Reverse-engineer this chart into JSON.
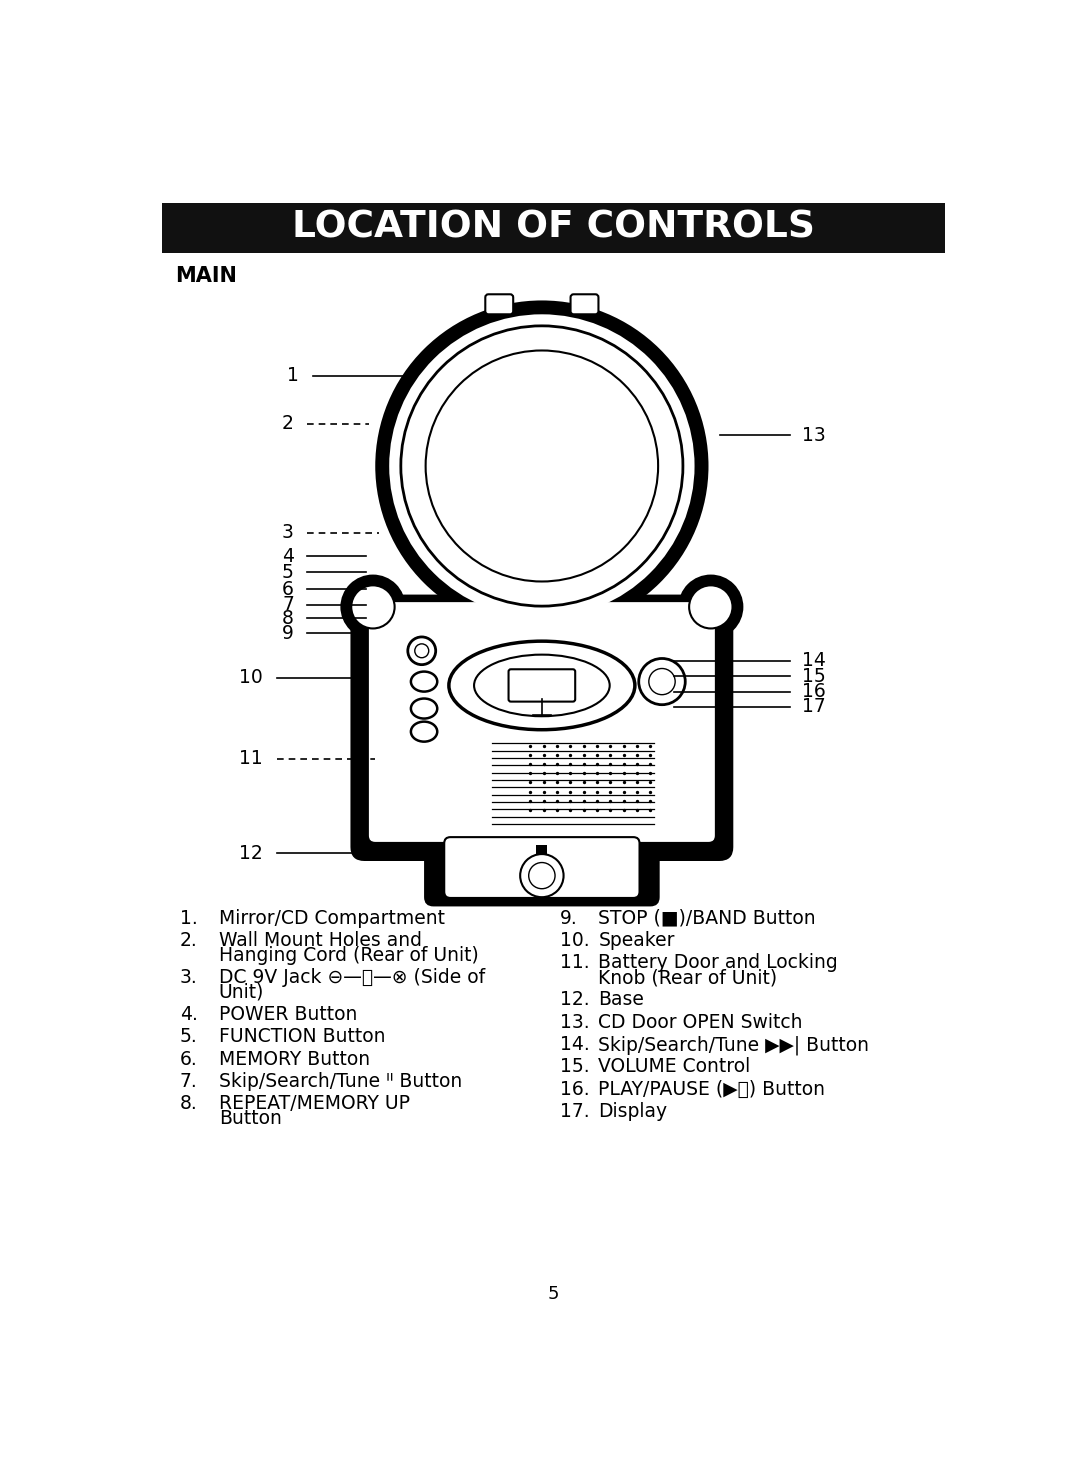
{
  "title": "LOCATION OF CONTROLS",
  "subtitle": "MAIN",
  "page_number": "5",
  "background_color": "#ffffff",
  "title_bg_color": "#111111",
  "title_text_color": "#ffffff",
  "items_left": [
    {
      "num": "1.",
      "text": "Mirror/CD Compartment"
    },
    {
      "num": "2.",
      "text": "Wall Mount Holes and\nHanging Cord (Rear of Unit)"
    },
    {
      "num": "3.",
      "text": "DC 9V Jack ⊖—Ⓢ—⊗ (Side of\nUnit)"
    },
    {
      "num": "4.",
      "text": "POWER Button"
    },
    {
      "num": "5.",
      "text": "FUNCTION Button"
    },
    {
      "num": "6.",
      "text": "MEMORY Button"
    },
    {
      "num": "7.",
      "text": "Skip/Search/Tune ᑊᑊ Button"
    },
    {
      "num": "8.",
      "text": "REPEAT/MEMORY UP\nButton"
    }
  ],
  "items_right": [
    {
      "num": "9.",
      "text": "STOP (■)/BAND Button"
    },
    {
      "num": "10.",
      "text": "Speaker"
    },
    {
      "num": "11.",
      "text": "Battery Door and Locking\nKnob (Rear of Unit)"
    },
    {
      "num": "12.",
      "text": "Base"
    },
    {
      "num": "13.",
      "text": "CD Door OPEN Switch"
    },
    {
      "num": "14.",
      "text": "Skip/Search/Tune ▶▶| Button"
    },
    {
      "num": "15.",
      "text": "VOLUME Control"
    },
    {
      "num": "16.",
      "text": "PLAY/PAUSE (▶⏸) Button"
    },
    {
      "num": "17.",
      "text": "Display"
    }
  ]
}
